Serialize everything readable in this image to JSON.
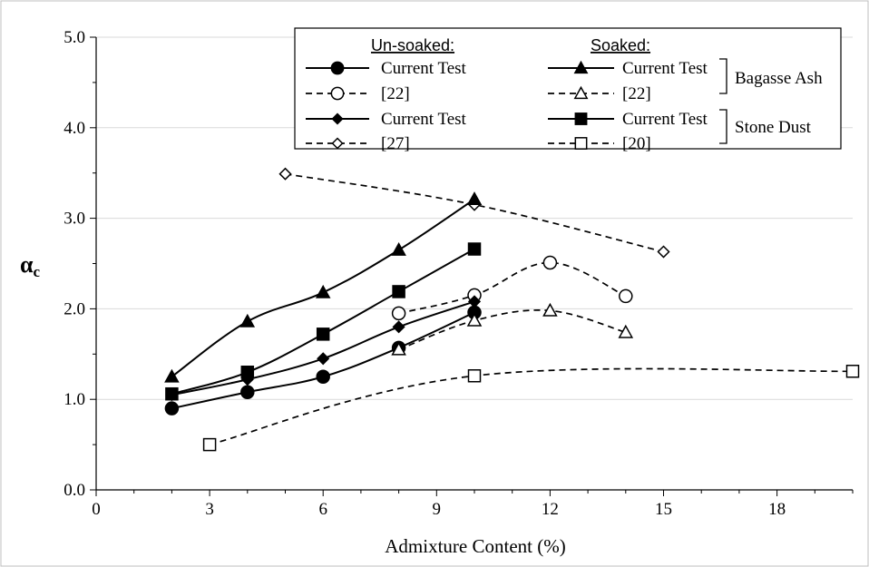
{
  "chart_data": {
    "type": "line",
    "xlabel": "Admixture Content (%)",
    "ylabel": "α",
    "ylabel_sub": "c",
    "xlim": [
      0,
      20
    ],
    "ylim": [
      0,
      5
    ],
    "xticks": [
      0,
      3,
      6,
      9,
      12,
      15,
      18
    ],
    "yticks": [
      0,
      1,
      2,
      3,
      4,
      5
    ],
    "xtick_labels": [
      "0",
      "3",
      "6",
      "9",
      "12",
      "15",
      "18"
    ],
    "ytick_labels": [
      "0.0",
      "1.0",
      "2.0",
      "3.0",
      "4.0",
      "5.0"
    ],
    "grid": "horizontal",
    "legend_position": "top-right",
    "legend": {
      "col1_header": "Un-soaked:",
      "col2_header": "Soaked:",
      "group1": "Bagasse Ash",
      "group2": "Stone Dust"
    },
    "series": [
      {
        "name": "Current Test",
        "condition": "Un-soaked",
        "material": "Bagasse Ash",
        "marker": "circle-filled",
        "dash": "solid",
        "x": [
          2,
          4,
          6,
          8,
          10
        ],
        "y": [
          0.9,
          1.08,
          1.25,
          1.57,
          1.96
        ]
      },
      {
        "name": "[22]",
        "condition": "Un-soaked",
        "material": "Bagasse Ash",
        "marker": "circle-open",
        "dash": "dashed",
        "x": [
          8,
          10,
          12,
          14
        ],
        "y": [
          1.95,
          2.15,
          2.51,
          2.14
        ]
      },
      {
        "name": "Current Test",
        "condition": "Un-soaked",
        "material": "Stone Dust",
        "marker": "diamond-filled",
        "dash": "solid",
        "x": [
          2,
          4,
          6,
          8,
          10
        ],
        "y": [
          1.05,
          1.22,
          1.45,
          1.8,
          2.08
        ]
      },
      {
        "name": "[27]",
        "condition": "Un-soaked",
        "material": "Stone Dust",
        "marker": "diamond-open",
        "dash": "dashed",
        "x": [
          5,
          10,
          15
        ],
        "y": [
          3.49,
          3.15,
          2.63
        ]
      },
      {
        "name": "Current Test",
        "condition": "Soaked",
        "material": "Bagasse Ash",
        "marker": "triangle-filled",
        "dash": "solid",
        "x": [
          2,
          4,
          6,
          8,
          10
        ],
        "y": [
          1.25,
          1.86,
          2.18,
          2.65,
          3.21
        ]
      },
      {
        "name": "[22]",
        "condition": "Soaked",
        "material": "Bagasse Ash",
        "marker": "triangle-open",
        "dash": "dashed",
        "x": [
          8,
          10,
          12,
          14
        ],
        "y": [
          1.55,
          1.87,
          1.98,
          1.74
        ]
      },
      {
        "name": "Current Test",
        "condition": "Soaked",
        "material": "Stone Dust",
        "marker": "square-filled",
        "dash": "solid",
        "x": [
          2,
          4,
          6,
          8,
          10
        ],
        "y": [
          1.06,
          1.3,
          1.72,
          2.19,
          2.66
        ]
      },
      {
        "name": "[20]",
        "condition": "Soaked",
        "material": "Stone Dust",
        "marker": "square-open",
        "dash": "dashed",
        "x": [
          3,
          10,
          20
        ],
        "y": [
          0.5,
          1.26,
          1.31
        ]
      }
    ]
  }
}
